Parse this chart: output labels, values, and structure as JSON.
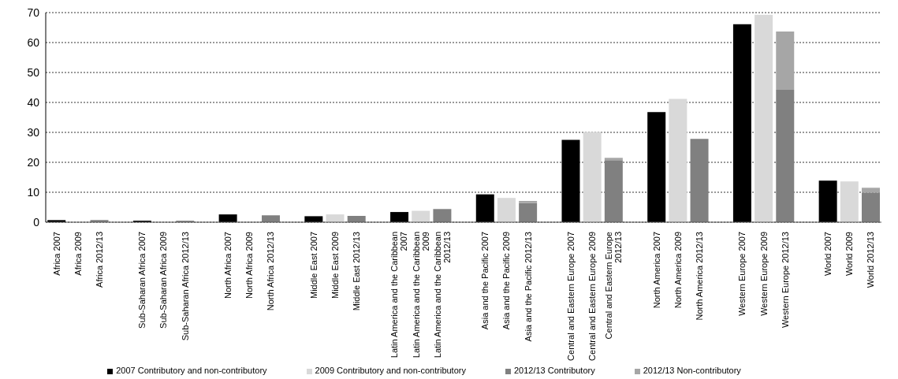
{
  "chart_data": {
    "type": "bar",
    "stacked": true,
    "categories": [
      "Africa 2007",
      "Africa 2009",
      "Africa 2012/13",
      null,
      "Sub-Saharan Africa 2007",
      "Sub-Saharan Africa 2009",
      "Sub-Saharan Africa 2012/13",
      null,
      "North Africa 2007",
      "North Africa 2009",
      "North Africa 2012/13",
      null,
      "Middle East 2007",
      "Middle East 2009",
      "Middle East 2012/13",
      null,
      "Latin America and the Caribbean 2007",
      "Latin America and the Caribbean 2009",
      "Latin America and the Caribbean 2012/13",
      null,
      "Asia and the Pacific 2007",
      "Asia and the Pacific 2009",
      "Asia and the Pacific 2012/13",
      null,
      "Central and Eastern Europe 2007",
      "Central and Eastern Europe 2009",
      "Central and Eastern Europe 2012/13",
      null,
      "North America 2007",
      "North America 2009",
      "North America 2012/13",
      null,
      "Western Europe 2007",
      "Western Europe 2009",
      "Western Europe 2012/13",
      null,
      "World 2007",
      "World 2009",
      "World 2012/13"
    ],
    "series": [
      {
        "name": "2007 Contributory and non-contributory",
        "color": "#000000",
        "values": [
          0.7,
          null,
          null,
          null,
          0.5,
          null,
          null,
          null,
          2.6,
          null,
          null,
          null,
          2.0,
          null,
          null,
          null,
          3.4,
          null,
          null,
          null,
          9.3,
          null,
          null,
          null,
          27.5,
          null,
          null,
          null,
          36.8,
          null,
          null,
          null,
          66.1,
          null,
          null,
          null,
          13.9,
          null,
          null
        ]
      },
      {
        "name": "2009 Contributory and non-contributory",
        "color": "#d9d9d9",
        "values": [
          null,
          null,
          null,
          null,
          null,
          null,
          null,
          null,
          null,
          null,
          null,
          null,
          null,
          2.6,
          null,
          null,
          null,
          3.8,
          null,
          null,
          null,
          8.1,
          null,
          null,
          null,
          30.1,
          null,
          null,
          null,
          41.2,
          null,
          null,
          null,
          69.3,
          null,
          null,
          null,
          13.6,
          null
        ]
      },
      {
        "name": "2012/13 Contributory",
        "color": "#808080",
        "values": [
          null,
          null,
          0.7,
          null,
          null,
          null,
          0.5,
          null,
          null,
          null,
          2.3,
          null,
          null,
          null,
          2.1,
          null,
          null,
          null,
          4.4,
          null,
          null,
          null,
          6.4,
          null,
          null,
          null,
          20.7,
          null,
          null,
          null,
          27.8,
          null,
          null,
          null,
          44.2,
          null,
          null,
          null,
          9.9
        ]
      },
      {
        "name": "2012/13 Non-contributory",
        "color": "#a6a6a6",
        "values": [
          null,
          null,
          null,
          null,
          null,
          null,
          null,
          null,
          null,
          null,
          null,
          null,
          null,
          null,
          null,
          null,
          null,
          null,
          null,
          null,
          null,
          null,
          0.7,
          null,
          null,
          null,
          0.8,
          null,
          null,
          null,
          null,
          null,
          null,
          null,
          19.5,
          null,
          null,
          null,
          1.6
        ]
      }
    ],
    "ylim": [
      0,
      70
    ],
    "yticks": [
      0,
      10,
      20,
      30,
      40,
      50,
      60,
      70
    ],
    "grid": "y",
    "legend": "bottom"
  }
}
